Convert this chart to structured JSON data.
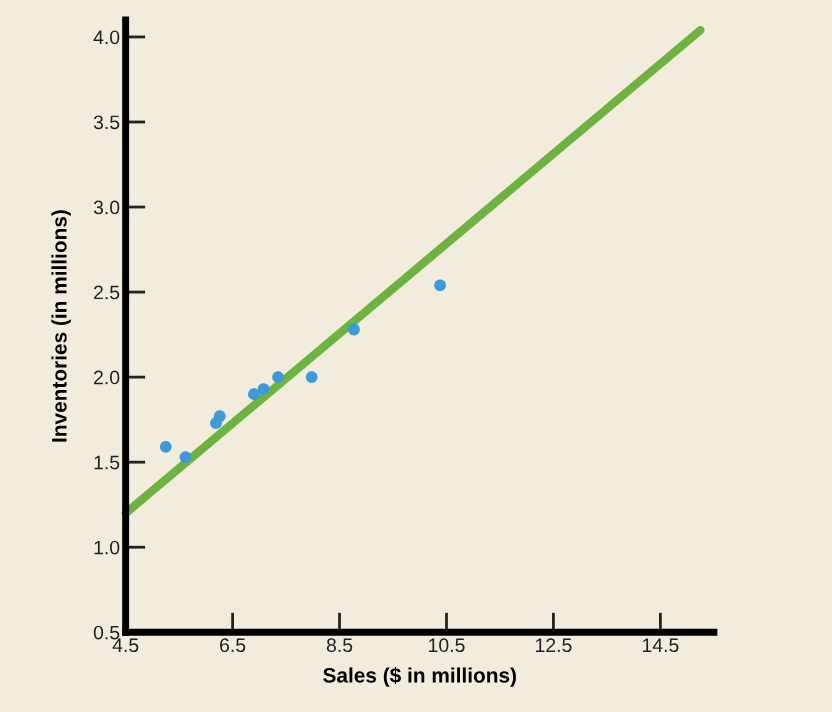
{
  "chart_data": {
    "type": "scatter",
    "xlabel": "Sales ($ in millions)",
    "ylabel": "Inventories (in millions)",
    "xlim": [
      4.5,
      15.5
    ],
    "ylim": [
      0.5,
      4.1
    ],
    "xticks": [
      4.5,
      6.5,
      8.5,
      10.5,
      12.5,
      14.5
    ],
    "yticks": [
      0.5,
      {
        "value": 1,
        "label": "1.0"
      },
      1.5,
      {
        "value": 2,
        "label": "2.0"
      },
      2.5,
      {
        "value": 3,
        "label": "3.0"
      },
      3.5,
      {
        "value": 4,
        "label": "4.0"
      }
    ],
    "grid": false,
    "series": [
      {
        "marker": "circle",
        "color": "#3b9ad9",
        "x": [
          5.25,
          5.62,
          6.19,
          6.26,
          6.9,
          7.08,
          7.35,
          7.98,
          8.77,
          10.38
        ],
        "values": [
          1.59,
          1.53,
          1.73,
          1.77,
          1.9,
          1.93,
          2.0,
          2.0,
          2.28,
          2.54
        ]
      },
      {
        "type": "line",
        "color": "#6db33f",
        "x": [
          4.5,
          15.25
        ],
        "values": [
          1.2,
          4.04
        ]
      }
    ]
  }
}
